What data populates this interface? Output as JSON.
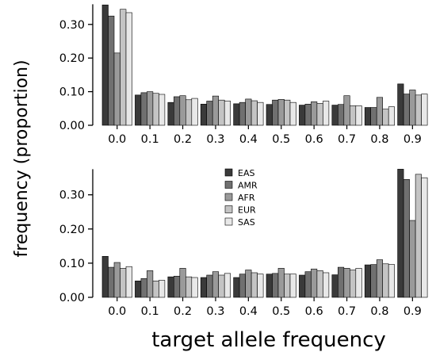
{
  "ylabel": "frequency (proportion)",
  "xlabel": "target allele frequency",
  "series_colors": [
    "#3a3a3a",
    "#707070",
    "#9a9a9a",
    "#c4c4c4",
    "#e8e8e8"
  ],
  "chart_data": [
    {
      "type": "bar",
      "panel": "top",
      "categories": [
        "0.0",
        "0.1",
        "0.2",
        "0.3",
        "0.4",
        "0.5",
        "0.6",
        "0.7",
        "0.8",
        "0.9"
      ],
      "yticks": [
        "0.00",
        "0.10",
        "0.20",
        "0.30"
      ],
      "ylim": [
        0,
        0.36
      ],
      "series": [
        {
          "name": "EAS",
          "values": [
            0.358,
            0.09,
            0.068,
            0.063,
            0.064,
            0.062,
            0.06,
            0.06,
            0.053,
            0.123
          ]
        },
        {
          "name": "AMR",
          "values": [
            0.325,
            0.097,
            0.085,
            0.072,
            0.068,
            0.075,
            0.063,
            0.062,
            0.053,
            0.093
          ]
        },
        {
          "name": "AFR",
          "values": [
            0.215,
            0.1,
            0.088,
            0.087,
            0.078,
            0.077,
            0.07,
            0.088,
            0.083,
            0.105
          ]
        },
        {
          "name": "EUR",
          "values": [
            0.345,
            0.095,
            0.076,
            0.075,
            0.073,
            0.075,
            0.065,
            0.058,
            0.048,
            0.09
          ]
        },
        {
          "name": "SAS",
          "values": [
            0.335,
            0.092,
            0.08,
            0.072,
            0.068,
            0.068,
            0.072,
            0.058,
            0.055,
            0.093
          ]
        }
      ]
    },
    {
      "type": "bar",
      "panel": "bottom",
      "categories": [
        "0.0",
        "0.1",
        "0.2",
        "0.3",
        "0.4",
        "0.5",
        "0.6",
        "0.7",
        "0.8",
        "0.9"
      ],
      "yticks": [
        "0.00",
        "0.10",
        "0.20",
        "0.30"
      ],
      "ylim": [
        0,
        0.375
      ],
      "legend": [
        "EAS",
        "AMR",
        "AFR",
        "EUR",
        "SAS"
      ],
      "series": [
        {
          "name": "EAS",
          "values": [
            0.12,
            0.048,
            0.06,
            0.058,
            0.058,
            0.068,
            0.065,
            0.066,
            0.095,
            0.375
          ]
        },
        {
          "name": "AMR",
          "values": [
            0.088,
            0.055,
            0.062,
            0.065,
            0.068,
            0.07,
            0.075,
            0.088,
            0.096,
            0.345
          ]
        },
        {
          "name": "AFR",
          "values": [
            0.102,
            0.078,
            0.085,
            0.075,
            0.08,
            0.085,
            0.083,
            0.085,
            0.11,
            0.225
          ]
        },
        {
          "name": "EUR",
          "values": [
            0.085,
            0.048,
            0.06,
            0.065,
            0.072,
            0.068,
            0.078,
            0.08,
            0.098,
            0.36
          ]
        },
        {
          "name": "SAS",
          "values": [
            0.09,
            0.05,
            0.058,
            0.07,
            0.068,
            0.068,
            0.072,
            0.085,
            0.096,
            0.35
          ]
        }
      ]
    }
  ]
}
